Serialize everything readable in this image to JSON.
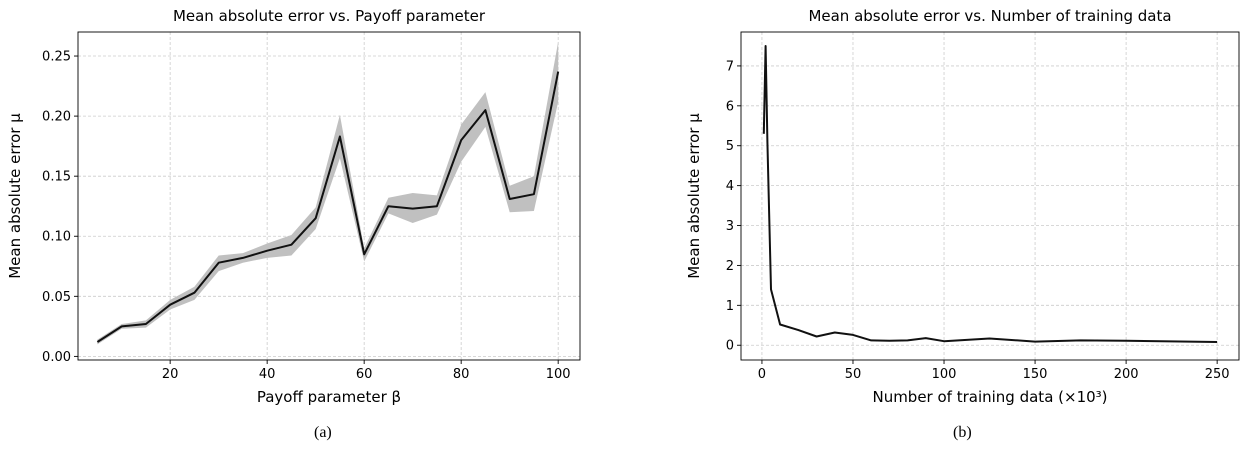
{
  "chart_data": [
    {
      "type": "line",
      "title": "Mean absolute error vs. Payoff parameter",
      "xlabel": "Payoff parameter β",
      "ylabel": "Mean absolute error μ",
      "xlim": [
        1,
        104.5
      ],
      "ylim": [
        -0.003,
        0.27
      ],
      "xticks": [
        20,
        40,
        60,
        80,
        100
      ],
      "yticks": [
        0.0,
        0.05,
        0.1,
        0.15,
        0.2,
        0.25
      ],
      "ytick_labels": [
        "0.00",
        "0.05",
        "0.10",
        "0.15",
        "0.20",
        "0.25"
      ],
      "grid": true,
      "line_color": "#111111",
      "band_color": "#c0c0c0",
      "series": [
        {
          "x": [
            5,
            10,
            15,
            20,
            25,
            30,
            35,
            40,
            45,
            50,
            55,
            60,
            65,
            70,
            75,
            80,
            85,
            90,
            95,
            100
          ],
          "y": [
            0.012,
            0.025,
            0.027,
            0.043,
            0.053,
            0.078,
            0.082,
            0.088,
            0.093,
            0.115,
            0.183,
            0.085,
            0.125,
            0.123,
            0.125,
            0.18,
            0.205,
            0.131,
            0.135,
            0.237
          ],
          "upper": [
            0.014,
            0.027,
            0.03,
            0.047,
            0.058,
            0.084,
            0.086,
            0.094,
            0.101,
            0.124,
            0.201,
            0.09,
            0.132,
            0.136,
            0.134,
            0.193,
            0.22,
            0.142,
            0.15,
            0.262
          ],
          "lower": [
            0.01,
            0.023,
            0.024,
            0.039,
            0.047,
            0.071,
            0.078,
            0.082,
            0.084,
            0.106,
            0.165,
            0.079,
            0.119,
            0.111,
            0.118,
            0.162,
            0.191,
            0.12,
            0.121,
            0.212
          ]
        }
      ]
    },
    {
      "type": "line",
      "title": "Mean absolute error vs. Number of training data",
      "xlabel": "Number of training data (×10³)",
      "ylabel": "Mean absolute error μ",
      "xlim": [
        -11.5,
        262
      ],
      "ylim": [
        -0.37,
        7.85
      ],
      "xticks": [
        0,
        50,
        100,
        150,
        200,
        250
      ],
      "yticks": [
        0,
        1,
        2,
        3,
        4,
        5,
        6,
        7
      ],
      "ytick_labels": [
        "0",
        "1",
        "2",
        "3",
        "4",
        "5",
        "6",
        "7"
      ],
      "grid": true,
      "line_color": "#111111",
      "series": [
        {
          "x": [
            1,
            2,
            3,
            5,
            10,
            20,
            30,
            40,
            50,
            60,
            70,
            80,
            90,
            100,
            125,
            150,
            175,
            200,
            250
          ],
          "y": [
            5.3,
            7.5,
            5.1,
            1.4,
            0.52,
            0.38,
            0.22,
            0.32,
            0.26,
            0.12,
            0.11,
            0.12,
            0.18,
            0.1,
            0.17,
            0.09,
            0.12,
            0.11,
            0.08
          ]
        }
      ]
    }
  ],
  "captions": [
    "(a)",
    "(b)"
  ]
}
